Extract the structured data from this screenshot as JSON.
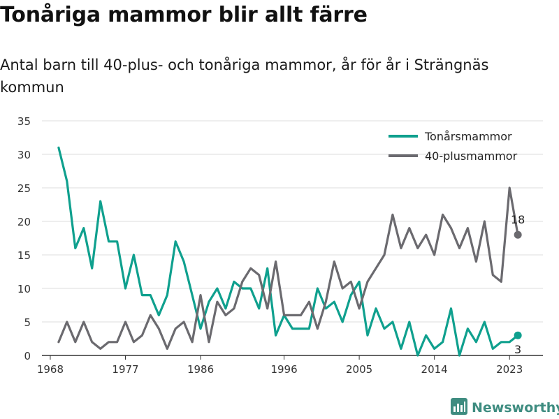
{
  "title": "Tonåriga mammor blir allt färre",
  "subtitle": "Antal barn till 40-plus- och tonåriga mammor, år för år i Strängnäs kommun",
  "brand": "Newsworthy",
  "colors": {
    "teen": "#0fa08e",
    "plus40": "#6b6a6f",
    "grid": "#dddddd",
    "axis": "#333333",
    "brand": "#3e8c80"
  },
  "chart_data": {
    "type": "line",
    "title": "Tonåriga mammor blir allt färre",
    "subtitle": "Antal barn till 40-plus- och tonåriga mammor, år för år i Strängnäs kommun",
    "xlabel": "",
    "ylabel": "",
    "ylim": [
      0,
      35
    ],
    "xlim": [
      1967,
      2027
    ],
    "y_ticks": [
      0,
      5,
      10,
      15,
      20,
      25,
      30,
      35
    ],
    "x_ticks": [
      1968,
      1977,
      1986,
      1996,
      2005,
      2014,
      2023
    ],
    "grid": "horizontal",
    "legend_position": "top-right",
    "x": [
      1969,
      1970,
      1971,
      1972,
      1973,
      1974,
      1975,
      1976,
      1977,
      1978,
      1979,
      1980,
      1981,
      1982,
      1983,
      1984,
      1985,
      1986,
      1987,
      1988,
      1989,
      1990,
      1991,
      1992,
      1993,
      1994,
      1995,
      1996,
      1997,
      1998,
      1999,
      2000,
      2001,
      2002,
      2003,
      2004,
      2005,
      2006,
      2007,
      2008,
      2009,
      2010,
      2011,
      2012,
      2013,
      2014,
      2015,
      2016,
      2017,
      2018,
      2019,
      2020,
      2021,
      2022,
      2023,
      2024
    ],
    "series": [
      {
        "name": "Tonårsmammor",
        "color": "#0fa08e",
        "values": [
          31,
          26,
          16,
          19,
          13,
          23,
          17,
          17,
          10,
          15,
          9,
          9,
          6,
          9,
          17,
          14,
          9,
          4,
          8,
          10,
          7,
          11,
          10,
          10,
          7,
          13,
          3,
          6,
          4,
          4,
          4,
          10,
          7,
          8,
          5,
          9,
          11,
          3,
          7,
          4,
          5,
          1,
          5,
          0,
          3,
          1,
          2,
          7,
          0,
          4,
          2,
          5,
          1,
          2,
          2,
          3
        ],
        "end_label": "3"
      },
      {
        "name": "40-plusmammor",
        "color": "#6b6a6f",
        "values": [
          2,
          5,
          2,
          5,
          2,
          1,
          2,
          2,
          5,
          2,
          3,
          6,
          4,
          1,
          4,
          5,
          2,
          9,
          2,
          8,
          6,
          7,
          11,
          13,
          12,
          7,
          14,
          6,
          6,
          6,
          8,
          4,
          8,
          14,
          10,
          11,
          7,
          11,
          13,
          15,
          21,
          16,
          19,
          16,
          18,
          15,
          21,
          19,
          16,
          19,
          14,
          20,
          12,
          11,
          25,
          18
        ],
        "end_label": "18"
      }
    ]
  }
}
